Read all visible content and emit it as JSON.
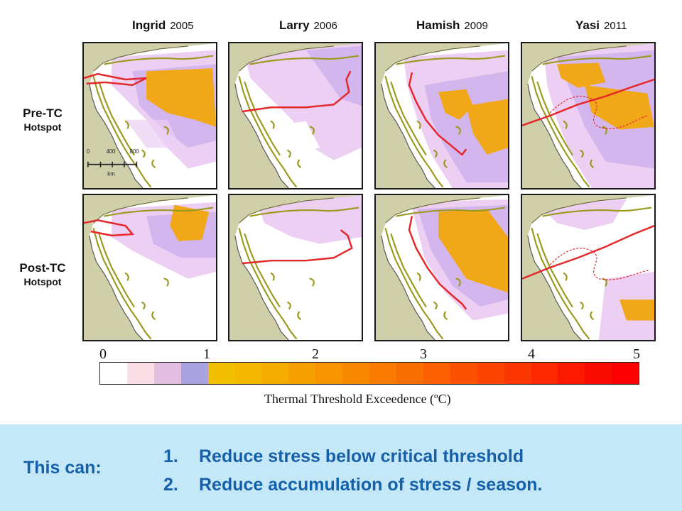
{
  "columns": [
    {
      "name": "Ingrid",
      "year": "2005"
    },
    {
      "name": "Larry",
      "year": "2006"
    },
    {
      "name": "Hamish",
      "year": "2009"
    },
    {
      "name": "Yasi",
      "year": "2011"
    }
  ],
  "rows": [
    {
      "label": "Pre-TC",
      "sub": "Hotspot"
    },
    {
      "label": "Post-TC",
      "sub": "Hotspot"
    }
  ],
  "scalebar": {
    "ticks": [
      "0",
      "400",
      "800"
    ],
    "unit": "km"
  },
  "colorbar": {
    "title": "Thermal Threshold Exceedence (ºC)",
    "ticks": [
      "0",
      "1",
      "2",
      "3",
      "4",
      "5"
    ],
    "range": [
      0,
      5
    ],
    "colors": [
      "#ffffff",
      "#fbdde6",
      "#e2bfe0",
      "#a9a3e2",
      "#f2c000",
      "#f4b800",
      "#f5ac00",
      "#f6a000",
      "#f79400",
      "#f88800",
      "#f97c00",
      "#f96e00",
      "#fa6000",
      "#fa5200",
      "#fa4400",
      "#fb3600",
      "#fb2800",
      "#fb1a00",
      "#fb0c00",
      "#fb0000"
    ],
    "legend_colors": {
      "land": "#cfcfaa",
      "reef": "#9a9a1e",
      "track": "#e5272a",
      "stress_light": "#e9c4f2",
      "stress_purple": "#c7a9ec",
      "stress_orange": "#f0a818"
    }
  },
  "footer": {
    "lead": "This can:",
    "points": [
      {
        "num": "1.",
        "text": "Reduce stress below critical threshold"
      },
      {
        "num": "2.",
        "text": "Reduce accumulation of stress / season."
      }
    ]
  }
}
